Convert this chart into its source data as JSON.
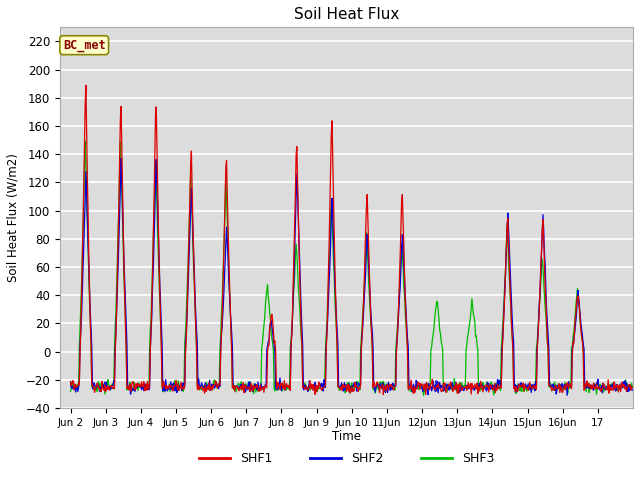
{
  "title": "Soil Heat Flux",
  "ylabel": "Soil Heat Flux (W/m2)",
  "xlabel": "Time",
  "ylim": [
    -40,
    230
  ],
  "yticks": [
    -40,
    -20,
    0,
    20,
    40,
    60,
    80,
    100,
    120,
    140,
    160,
    180,
    200,
    220
  ],
  "xtick_labels": [
    "Jun 2",
    "Jun 3",
    "Jun 4",
    "Jun 5",
    "Jun 6",
    "Jun 7",
    "Jun 8",
    "Jun 9",
    "Jun 10",
    "11Jun",
    "12Jun",
    "13Jun",
    "14Jun",
    "15Jun",
    "16Jun",
    "17"
  ],
  "series_colors": {
    "SHF1": "#dd0000",
    "SHF2": "#0000dd",
    "SHF3": "#00bb00"
  },
  "legend_label": "BC_met",
  "plot_bg_color": "#dcdcdc",
  "fig_bg_color": "#ffffff",
  "grid_color": "#ffffff"
}
